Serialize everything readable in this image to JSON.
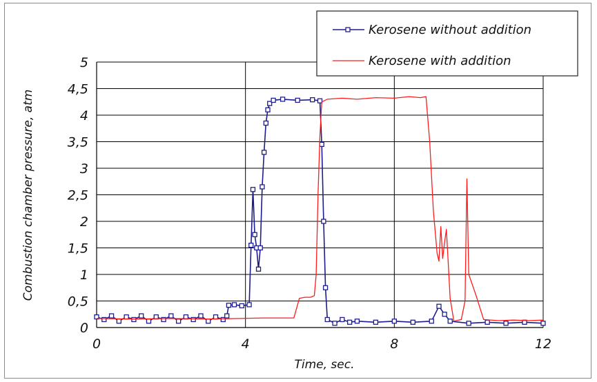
{
  "chart_data": {
    "type": "line",
    "xlabel": "Time, sec.",
    "ylabel": "Combustion chamber pressure, atm",
    "xlim": [
      0,
      12
    ],
    "ylim": [
      0,
      5
    ],
    "x_ticks": [
      "0",
      "4",
      "8",
      "12"
    ],
    "x_tick_values": [
      0,
      4,
      8,
      12
    ],
    "y_ticks": [
      "0",
      "0,5",
      "1",
      "1,5",
      "2",
      "2,5",
      "3",
      "3,5",
      "4",
      "4,5",
      "5"
    ],
    "y_tick_values": [
      0,
      0.5,
      1,
      1.5,
      2,
      2.5,
      3,
      3.5,
      4,
      4.5,
      5
    ],
    "grid": true,
    "legend_position": "top-right",
    "series": [
      {
        "name": "Kerosene without addition",
        "color": "#1c1c8c",
        "marker": "square",
        "points": [
          [
            0,
            0.2
          ],
          [
            0.2,
            0.15
          ],
          [
            0.4,
            0.22
          ],
          [
            0.6,
            0.12
          ],
          [
            0.8,
            0.2
          ],
          [
            1.0,
            0.15
          ],
          [
            1.2,
            0.22
          ],
          [
            1.4,
            0.12
          ],
          [
            1.6,
            0.2
          ],
          [
            1.8,
            0.15
          ],
          [
            2.0,
            0.22
          ],
          [
            2.2,
            0.12
          ],
          [
            2.4,
            0.2
          ],
          [
            2.6,
            0.15
          ],
          [
            2.8,
            0.22
          ],
          [
            3.0,
            0.12
          ],
          [
            3.2,
            0.2
          ],
          [
            3.4,
            0.15
          ],
          [
            3.5,
            0.22
          ],
          [
            3.55,
            0.42
          ],
          [
            3.7,
            0.43
          ],
          [
            3.9,
            0.41
          ],
          [
            4.1,
            0.43
          ],
          [
            4.15,
            1.55
          ],
          [
            4.2,
            2.6
          ],
          [
            4.25,
            1.75
          ],
          [
            4.3,
            1.5
          ],
          [
            4.35,
            1.1
          ],
          [
            4.4,
            1.5
          ],
          [
            4.45,
            2.65
          ],
          [
            4.5,
            3.3
          ],
          [
            4.55,
            3.85
          ],
          [
            4.6,
            4.1
          ],
          [
            4.65,
            4.22
          ],
          [
            4.75,
            4.28
          ],
          [
            5.0,
            4.3
          ],
          [
            5.4,
            4.28
          ],
          [
            5.8,
            4.29
          ],
          [
            6.0,
            4.27
          ],
          [
            6.05,
            3.45
          ],
          [
            6.1,
            2.0
          ],
          [
            6.15,
            0.75
          ],
          [
            6.2,
            0.15
          ],
          [
            6.4,
            0.08
          ],
          [
            6.6,
            0.15
          ],
          [
            6.8,
            0.1
          ],
          [
            7.0,
            0.12
          ],
          [
            7.5,
            0.1
          ],
          [
            8.0,
            0.12
          ],
          [
            8.5,
            0.1
          ],
          [
            9.0,
            0.12
          ],
          [
            9.2,
            0.4
          ],
          [
            9.35,
            0.25
          ],
          [
            9.5,
            0.12
          ],
          [
            10.0,
            0.08
          ],
          [
            10.5,
            0.1
          ],
          [
            11.0,
            0.08
          ],
          [
            11.5,
            0.1
          ],
          [
            12.0,
            0.08
          ]
        ]
      },
      {
        "name": "Kerosene with addition",
        "color": "#ff1a1a",
        "marker": "none",
        "points": [
          [
            0,
            0.17
          ],
          [
            1.0,
            0.16
          ],
          [
            2.0,
            0.17
          ],
          [
            3.0,
            0.16
          ],
          [
            3.8,
            0.17
          ],
          [
            4.5,
            0.18
          ],
          [
            5.3,
            0.18
          ],
          [
            5.45,
            0.55
          ],
          [
            5.6,
            0.57
          ],
          [
            5.75,
            0.57
          ],
          [
            5.85,
            0.6
          ],
          [
            5.9,
            1.0
          ],
          [
            5.95,
            2.5
          ],
          [
            6.0,
            3.6
          ],
          [
            6.05,
            4.25
          ],
          [
            6.2,
            4.3
          ],
          [
            6.6,
            4.32
          ],
          [
            7.0,
            4.3
          ],
          [
            7.5,
            4.33
          ],
          [
            8.0,
            4.32
          ],
          [
            8.4,
            4.35
          ],
          [
            8.7,
            4.33
          ],
          [
            8.85,
            4.35
          ],
          [
            8.95,
            3.5
          ],
          [
            9.05,
            2.2
          ],
          [
            9.15,
            1.4
          ],
          [
            9.2,
            1.25
          ],
          [
            9.25,
            1.9
          ],
          [
            9.3,
            1.3
          ],
          [
            9.35,
            1.6
          ],
          [
            9.4,
            1.85
          ],
          [
            9.45,
            1.2
          ],
          [
            9.5,
            0.55
          ],
          [
            9.6,
            0.12
          ],
          [
            9.8,
            0.15
          ],
          [
            9.9,
            0.5
          ],
          [
            9.95,
            2.8
          ],
          [
            10.0,
            1.0
          ],
          [
            10.2,
            0.6
          ],
          [
            10.4,
            0.15
          ],
          [
            10.8,
            0.13
          ],
          [
            11.2,
            0.14
          ],
          [
            11.6,
            0.13
          ],
          [
            12.0,
            0.14
          ]
        ]
      }
    ]
  }
}
